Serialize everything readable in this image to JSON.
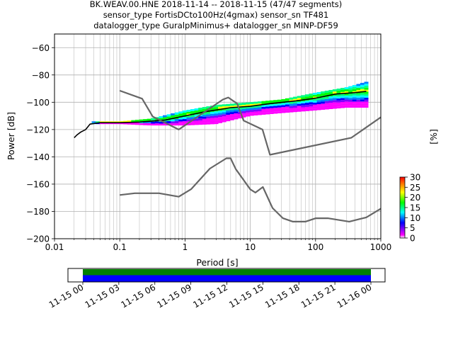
{
  "title_lines": [
    "BK.WEAV.00.HNE   2018-11-14 -- 2018-11-15  (47/47 segments)",
    "sensor_type FortisDCto100Hz(4gmax) sensor_sn TF481",
    "datalogger_type GuralpMinimus+ datalogger_sn MINP-DF59"
  ],
  "chart_data": [
    {
      "type": "heatmap",
      "xlabel": "Period [s]",
      "ylabel": "Power [dB]",
      "xscale": "log",
      "xlim": [
        0.01,
        1000
      ],
      "ylim": [
        -200,
        -50
      ],
      "grid": true,
      "x_ticks": [
        {
          "value": 0.01,
          "label": "0.01"
        },
        {
          "value": 0.1,
          "label": "0.1"
        },
        {
          "value": 1,
          "label": "1"
        },
        {
          "value": 10,
          "label": "10"
        },
        {
          "value": 100,
          "label": "100"
        },
        {
          "value": 1000,
          "label": "1000"
        }
      ],
      "y_ticks": [
        {
          "value": -60,
          "label": "−60"
        },
        {
          "value": -80,
          "label": "−80"
        },
        {
          "value": -100,
          "label": "−100"
        },
        {
          "value": -120,
          "label": "−120"
        },
        {
          "value": -140,
          "label": "−140"
        },
        {
          "value": -160,
          "label": "−160"
        },
        {
          "value": -180,
          "label": "−180"
        },
        {
          "value": -200,
          "label": "−200"
        }
      ],
      "colorbar": {
        "label": "[%]",
        "range": [
          0,
          30
        ],
        "ticks": [
          {
            "value": 0,
            "label": "0"
          },
          {
            "value": 5,
            "label": "5"
          },
          {
            "value": 10,
            "label": "10"
          },
          {
            "value": 15,
            "label": "15"
          },
          {
            "value": 20,
            "label": "20"
          },
          {
            "value": 25,
            "label": "25"
          },
          {
            "value": 30,
            "label": "30"
          }
        ],
        "colors": [
          "#ffffff",
          "#ff00ff",
          "#0000ff",
          "#00ffff",
          "#00ff00",
          "#ffff00",
          "#ff8000",
          "#ff0000"
        ]
      },
      "noise_model_high": {
        "x": [
          0.1,
          0.22,
          0.32,
          0.8,
          3.8,
          4.6,
          6.3,
          7.9,
          15.4,
          20,
          354.8,
          1000
        ],
        "y": [
          -91.5,
          -97.4,
          -110.5,
          -120,
          -98,
          -96.5,
          -101,
          -113.5,
          -120,
          -138.5,
          -126,
          -111
        ]
      },
      "noise_model_low": {
        "x": [
          0.1,
          0.17,
          0.4,
          0.8,
          1.24,
          2.4,
          4.3,
          5,
          6,
          10,
          12,
          15.6,
          21.9,
          31.6,
          45,
          70,
          101,
          154,
          328,
          600,
          1000
        ],
        "y": [
          -168,
          -166.7,
          -166.7,
          -169.2,
          -163.7,
          -148.6,
          -141.1,
          -141.1,
          -149,
          -163.8,
          -166.2,
          -162.1,
          -177.5,
          -185,
          -187.5,
          -187.5,
          -185,
          -185,
          -187.5,
          -184.4,
          -178
        ]
      },
      "ppsd_mode": {
        "x": [
          0.02,
          0.022,
          0.025,
          0.03,
          0.035,
          0.05,
          0.1,
          0.2,
          0.5,
          1,
          2,
          5,
          10,
          20,
          50,
          100,
          200,
          400,
          600
        ],
        "y": [
          -126,
          -124,
          -122,
          -120,
          -116,
          -115,
          -115,
          -114.5,
          -113,
          -110,
          -107,
          -104,
          -103,
          -101,
          -99,
          -97,
          -94,
          -93,
          -92
        ]
      },
      "ppsd_spread": [
        {
          "period": 0.04,
          "low": -116,
          "high": -114
        },
        {
          "period": 0.1,
          "low": -116,
          "high": -114
        },
        {
          "period": 0.3,
          "low": -117,
          "high": -112
        },
        {
          "period": 1,
          "low": -117,
          "high": -106
        },
        {
          "period": 3,
          "low": -116,
          "high": -102
        },
        {
          "period": 10,
          "low": -110,
          "high": -100
        },
        {
          "period": 30,
          "low": -108,
          "high": -98
        },
        {
          "period": 100,
          "low": -106,
          "high": -93
        },
        {
          "period": 300,
          "low": -104,
          "high": -89
        },
        {
          "period": 600,
          "low": -104,
          "high": -85
        }
      ]
    },
    {
      "type": "bar",
      "ticks": [
        "11-15 00",
        "11-15 03",
        "11-15 06",
        "11-15 09",
        "11-15 12",
        "11-15 15",
        "11-15 18",
        "11-15 21",
        "11-16 00"
      ],
      "coverage": [
        {
          "start": "11-15 00",
          "end": "11-16 00",
          "color": "#008000"
        },
        {
          "start": "11-15 00",
          "end": "11-16 00",
          "color": "#0000ff"
        }
      ]
    }
  ]
}
